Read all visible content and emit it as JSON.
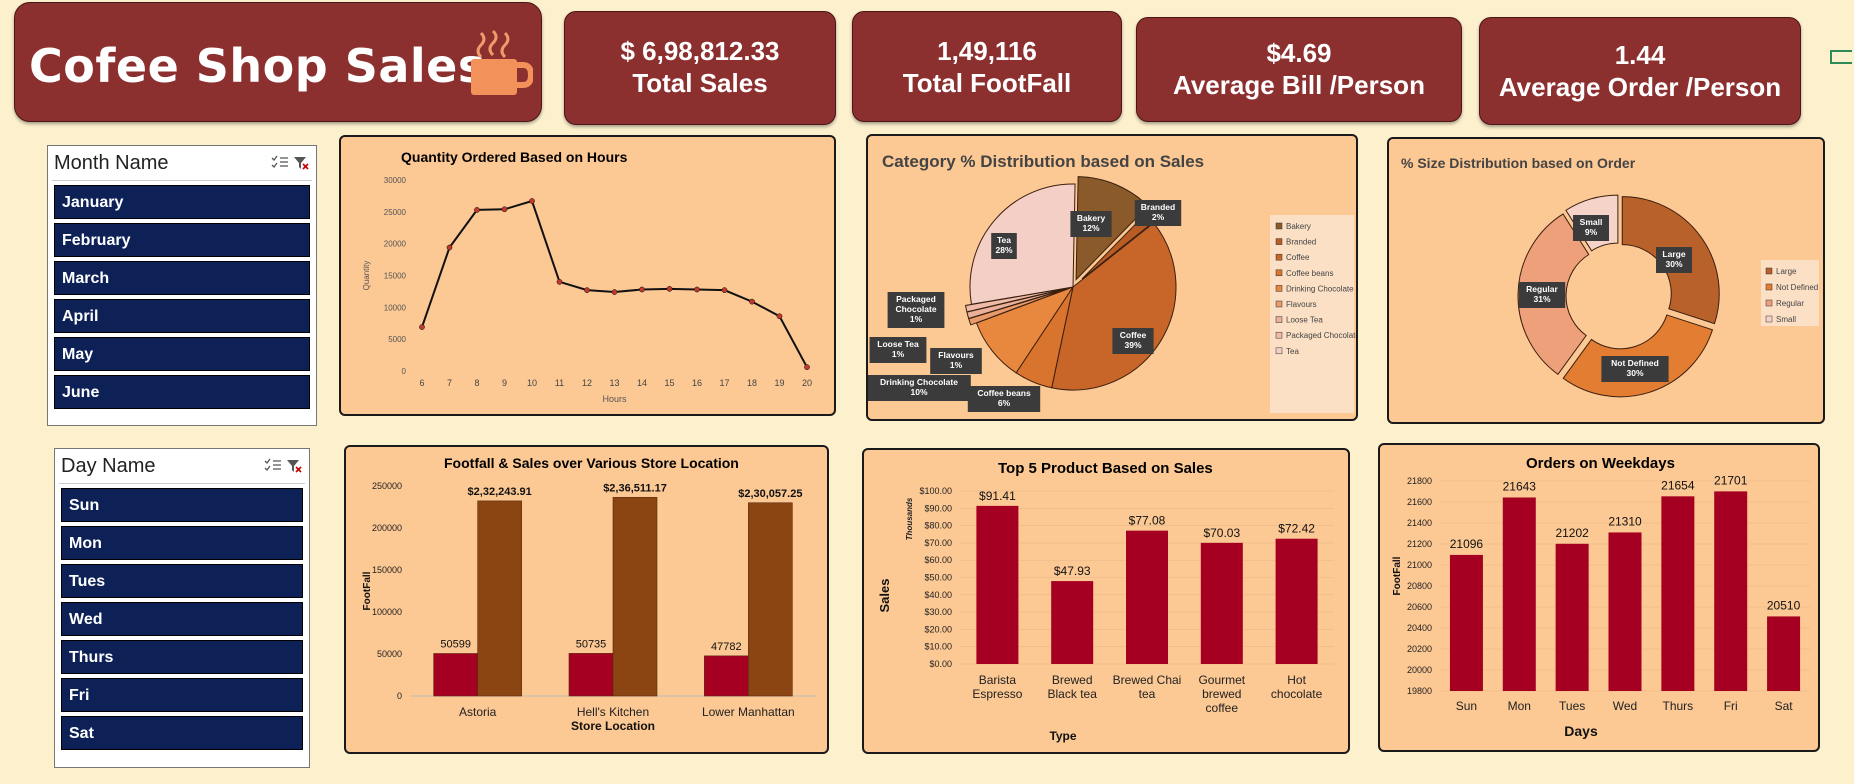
{
  "title": {
    "text": "Cofee Shop Sales",
    "cup_icon": "coffee-cup-icon"
  },
  "kpis": [
    {
      "value": "$ 6,98,812.33",
      "label": "Total Sales"
    },
    {
      "value": "1,49,116",
      "label": "Total FootFall"
    },
    {
      "value": "$4.69",
      "label": "Average Bill /Person"
    },
    {
      "value": "1.44",
      "label": "Average Order /Person"
    }
  ],
  "month_slicer": {
    "title": "Month Name",
    "items": [
      "January",
      "February",
      "March",
      "April",
      "May",
      "June"
    ]
  },
  "day_slicer": {
    "title": "Day Name",
    "items": [
      "Sun",
      "Mon",
      "Tues",
      "Wed",
      "Thurs",
      "Fri",
      "Sat"
    ]
  },
  "colors": {
    "kpi_bg": "#8c2f2f",
    "panel_bg": "#fcc893",
    "page_bg": "#fdf0cd",
    "slicer_item": "#0d2157",
    "bar_red": "#a50021",
    "bar_brown": "#8b4513"
  },
  "chart_data": [
    {
      "type": "line",
      "title": "Quantity Ordered Based on Hours",
      "xlabel": "Hours",
      "ylabel": "Quantity",
      "x": [
        6,
        7,
        8,
        9,
        10,
        11,
        12,
        13,
        14,
        15,
        16,
        17,
        18,
        19,
        20
      ],
      "values": [
        6900,
        19400,
        25300,
        25400,
        26700,
        14000,
        12700,
        12400,
        12800,
        12900,
        12800,
        12700,
        10900,
        8600,
        600
      ],
      "ylim": [
        0,
        30000
      ],
      "yticks": [
        "30000",
        "25000",
        "20000",
        "15000",
        "10000",
        "5000",
        "0"
      ],
      "grid": false
    },
    {
      "type": "pie",
      "title": "Category % Distribution based on Sales",
      "categories": [
        "Bakery",
        "Branded",
        "Coffee",
        "Coffee beans",
        "Drinking Chocolate",
        "Flavours",
        "Loose Tea",
        "Packaged Chocolate",
        "Tea"
      ],
      "values": [
        12,
        2,
        39,
        6,
        10,
        1,
        1,
        1,
        28
      ],
      "labels": [
        "Bakery\n12%",
        "Branded\n2%",
        "Coffee\n39%",
        "Coffee beans\n6%",
        "Drinking Chocolate\n10%",
        "Flavours\n1%",
        "Loose Tea\n1%",
        "Packaged\nChocolate\n1%",
        "Tea\n28%"
      ],
      "colors": [
        "#8b5a2b",
        "#b85c24",
        "#c8662a",
        "#d9742f",
        "#e8883e",
        "#e89a6a",
        "#eab09a",
        "#efbaa8",
        "#f4cfc6"
      ],
      "legend": "right"
    },
    {
      "type": "pie",
      "title": "% Size Distribution based on Order",
      "categories": [
        "Large",
        "Not Defined",
        "Regular",
        "Small"
      ],
      "values": [
        30,
        30,
        31,
        9
      ],
      "labels": [
        "Large\n30%",
        "Not Defined\n30%",
        "Regular\n31%",
        "Small\n9%"
      ],
      "colors": [
        "#b8612a",
        "#e27d32",
        "#eea07a",
        "#f6d3c8"
      ],
      "legend": "right",
      "donut": true
    },
    {
      "type": "bar",
      "title": "Footfall  & Sales over Various Store Location",
      "xlabel": "Store Location",
      "ylabel": "FootFall",
      "categories": [
        "Astoria",
        "Hell's Kitchen",
        "Lower Manhattan"
      ],
      "series": [
        {
          "values": [
            50599,
            50735,
            47782
          ],
          "labels": [
            "50599",
            "50735",
            "47782"
          ]
        },
        {
          "values": [
            232243.91,
            236511.17,
            230057.25
          ],
          "labels": [
            "$2,32,243.91",
            "$2,36,511.17",
            "$2,30,057.25"
          ]
        }
      ],
      "ylim": [
        0,
        250000
      ],
      "yticks": [
        "250000",
        "200000",
        "150000",
        "100000",
        "50000",
        "0"
      ]
    },
    {
      "type": "bar",
      "title": "Top  5 Product Based on Sales",
      "xlabel": "Type",
      "ylabel": "Sales",
      "unit_label": "Thousands",
      "categories": [
        "Barista\nEspresso",
        "Brewed\nBlack tea",
        "Brewed Chai\ntea",
        "Gourmet\nbrewed\ncoffee",
        "Hot\nchocolate"
      ],
      "values": [
        91.41,
        47.93,
        77.08,
        70.03,
        72.42
      ],
      "labels": [
        "$91.41",
        "$47.93",
        "$77.08",
        "$70.03",
        "$72.42"
      ],
      "ylim": [
        0,
        100
      ],
      "yticks": [
        "$100.00",
        "$90.00",
        "$80.00",
        "$70.00",
        "$60.00",
        "$50.00",
        "$40.00",
        "$30.00",
        "$20.00",
        "$10.00",
        "$0.00"
      ]
    },
    {
      "type": "bar",
      "title": "Orders on Weekdays",
      "xlabel": "Days",
      "ylabel": "FootFall",
      "categories": [
        "Sun",
        "Mon",
        "Tues",
        "Wed",
        "Thurs",
        "Fri",
        "Sat"
      ],
      "values": [
        21096,
        21643,
        21202,
        21310,
        21654,
        21701,
        20510
      ],
      "labels": [
        "21096",
        "21643",
        "21202",
        "21310",
        "21654",
        "21701",
        "20510"
      ],
      "ylim": [
        19800,
        21800
      ],
      "yticks": [
        "21800",
        "21600",
        "21400",
        "21200",
        "21000",
        "20800",
        "20600",
        "20400",
        "20200",
        "20000",
        "19800"
      ]
    }
  ]
}
